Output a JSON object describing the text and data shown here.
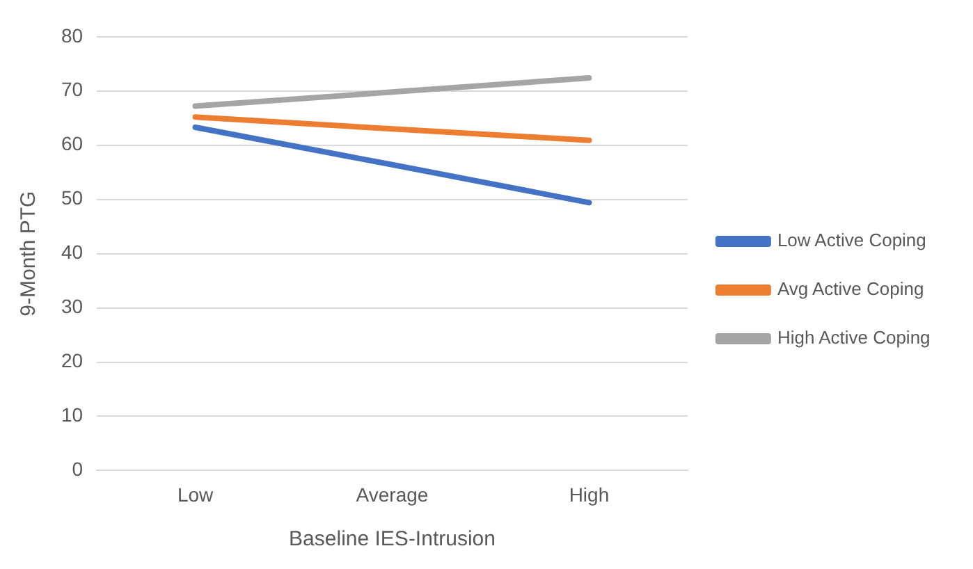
{
  "chart_data": {
    "type": "line",
    "xlabel": "Baseline IES-Intrusion",
    "ylabel": "9-Month PTG",
    "categories": [
      "Low",
      "Average",
      "High"
    ],
    "series": [
      {
        "name": "Low Active Coping",
        "color": "#4472c4",
        "values": [
          63.3,
          56.4,
          49.4
        ]
      },
      {
        "name": "Avg Active Coping",
        "color": "#ed7d31",
        "values": [
          65.2,
          63.0,
          60.9
        ]
      },
      {
        "name": "High Active Coping",
        "color": "#a5a5a5",
        "values": [
          67.2,
          69.8,
          72.4
        ]
      }
    ],
    "ylim": [
      0,
      80
    ],
    "yticks": [
      0,
      10,
      20,
      30,
      40,
      50,
      60,
      70,
      80
    ],
    "grid": "y",
    "legend": "right",
    "marker": "none",
    "line_style": "solid"
  }
}
